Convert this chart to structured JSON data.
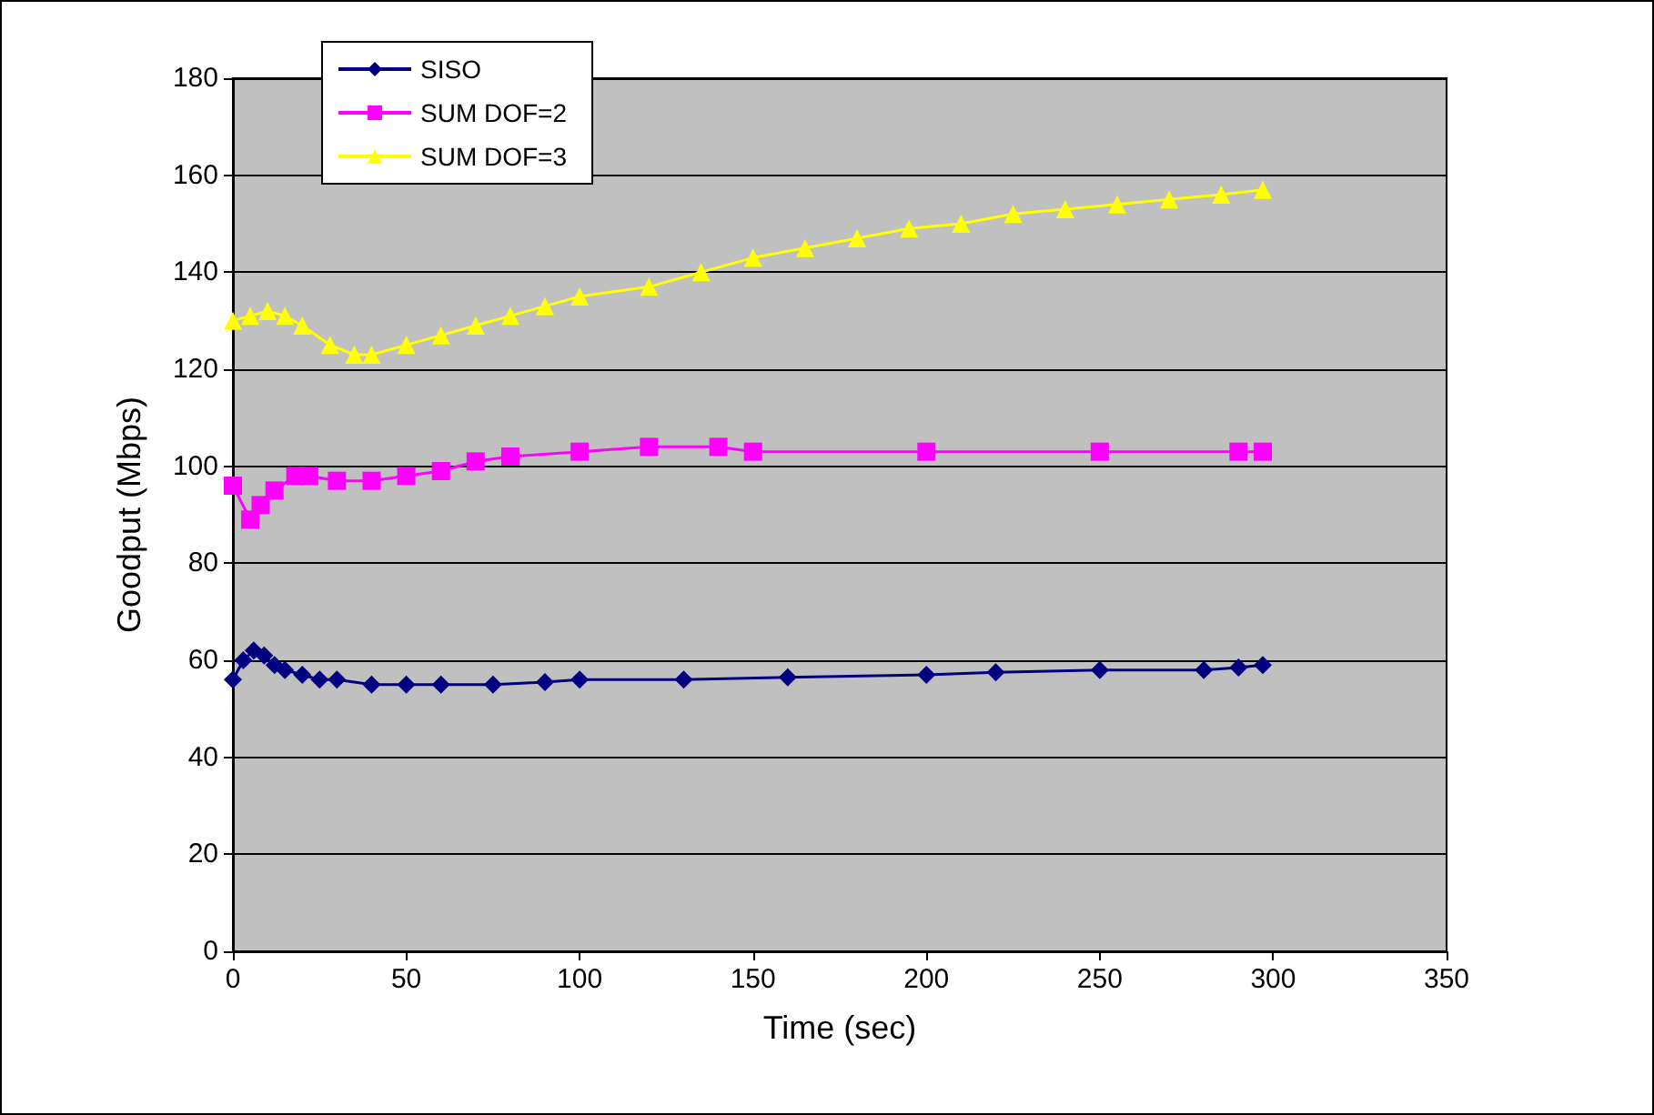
{
  "chart_data": {
    "type": "line",
    "xlabel": "Time (sec)",
    "ylabel": "Goodput (Mbps)",
    "xlim": [
      0,
      350
    ],
    "xticks": [
      0,
      50,
      100,
      150,
      200,
      250,
      300,
      350
    ],
    "ylim": [
      0,
      180
    ],
    "yticks": [
      0,
      20,
      40,
      60,
      80,
      100,
      120,
      140,
      160,
      180
    ],
    "grid": "y",
    "legend": "top left",
    "series": [
      {
        "name": "SISO",
        "color": "#000080",
        "marker": "diamond",
        "x": [
          0,
          3,
          6,
          9,
          12,
          15,
          20,
          25,
          30,
          40,
          50,
          60,
          75,
          90,
          100,
          130,
          160,
          200,
          220,
          250,
          280,
          290,
          297
        ],
        "values": [
          56,
          60,
          62,
          61,
          59,
          58,
          57,
          56,
          56,
          55,
          55,
          55,
          55,
          55.5,
          56,
          56,
          56.5,
          57,
          57.5,
          58,
          58,
          58.5,
          59
        ]
      },
      {
        "name": "SUM DOF=2",
        "color": "#ff00ff",
        "marker": "square",
        "x": [
          0,
          5,
          8,
          12,
          18,
          22,
          30,
          40,
          50,
          60,
          70,
          80,
          100,
          120,
          140,
          150,
          200,
          250,
          290,
          297
        ],
        "values": [
          96,
          89,
          92,
          95,
          98,
          98,
          97,
          97,
          98,
          99,
          101,
          102,
          103,
          104,
          104,
          103,
          103,
          103,
          103,
          103
        ]
      },
      {
        "name": "SUM DOF=3",
        "color": "#ffff00",
        "marker": "triangle",
        "x": [
          0,
          5,
          10,
          15,
          20,
          28,
          35,
          40,
          50,
          60,
          70,
          80,
          90,
          100,
          120,
          135,
          150,
          165,
          180,
          195,
          210,
          225,
          240,
          255,
          270,
          285,
          297
        ],
        "values": [
          130,
          131,
          132,
          131,
          129,
          125,
          123,
          123,
          125,
          127,
          129,
          131,
          133,
          135,
          137,
          140,
          143,
          145,
          147,
          149,
          150,
          152,
          153,
          154,
          155,
          156,
          157
        ]
      }
    ]
  }
}
